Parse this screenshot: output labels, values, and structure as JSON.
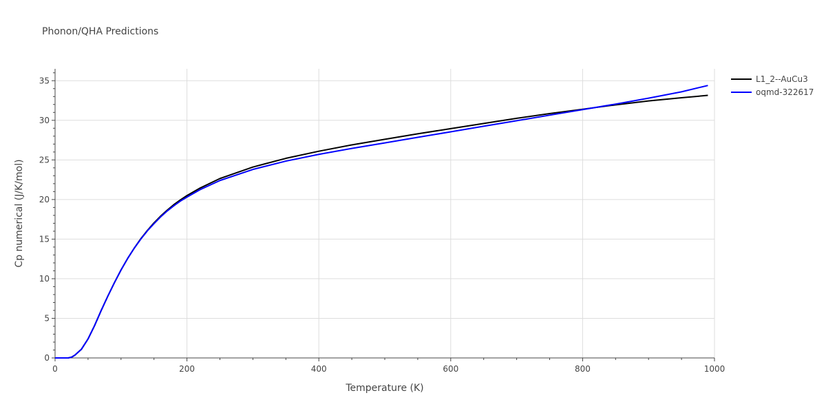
{
  "chart_data": {
    "type": "line",
    "title": "Phonon/QHA Predictions",
    "xlabel": "Temperature (K)",
    "ylabel": "Cp numerical (J/K/mol)",
    "xlim": [
      0,
      1000
    ],
    "ylim": [
      0,
      36.5
    ],
    "x_ticks": [
      0,
      200,
      400,
      600,
      800,
      1000
    ],
    "y_ticks": [
      0,
      5,
      10,
      15,
      20,
      25,
      30,
      35
    ],
    "grid": true,
    "legend_position": "top-right",
    "colors": {
      "text": "#444444",
      "grid": "#dddddd",
      "axis": "#444444"
    },
    "series": [
      {
        "name": "L1_2--AuCu3",
        "color": "#000000",
        "x": [
          0,
          10,
          20,
          25,
          30,
          40,
          50,
          60,
          70,
          80,
          90,
          100,
          110,
          120,
          130,
          140,
          150,
          160,
          170,
          180,
          190,
          200,
          220,
          250,
          300,
          350,
          400,
          450,
          500,
          550,
          600,
          650,
          700,
          750,
          800,
          850,
          900,
          950,
          990
        ],
        "values": [
          0,
          0,
          0,
          0.1,
          0.35,
          1.1,
          2.4,
          4.1,
          6.0,
          7.8,
          9.5,
          11.1,
          12.55,
          13.85,
          15.05,
          16.1,
          17.05,
          17.9,
          18.65,
          19.35,
          19.95,
          20.5,
          21.45,
          22.65,
          24.1,
          25.2,
          26.1,
          26.9,
          27.6,
          28.3,
          28.95,
          29.6,
          30.25,
          30.85,
          31.4,
          31.95,
          32.45,
          32.85,
          33.15
        ]
      },
      {
        "name": "oqmd-322617",
        "color": "#0000ff",
        "x": [
          0,
          10,
          20,
          25,
          30,
          40,
          50,
          60,
          70,
          80,
          90,
          100,
          110,
          120,
          130,
          140,
          150,
          160,
          170,
          180,
          190,
          200,
          220,
          250,
          300,
          350,
          400,
          450,
          500,
          550,
          600,
          650,
          700,
          750,
          800,
          850,
          900,
          950,
          990
        ],
        "values": [
          0,
          0,
          0,
          0.1,
          0.35,
          1.1,
          2.4,
          4.1,
          6.0,
          7.8,
          9.5,
          11.1,
          12.55,
          13.85,
          15.0,
          16.05,
          16.95,
          17.8,
          18.55,
          19.2,
          19.8,
          20.3,
          21.25,
          22.4,
          23.8,
          24.85,
          25.7,
          26.45,
          27.15,
          27.85,
          28.55,
          29.25,
          29.95,
          30.65,
          31.35,
          32.05,
          32.8,
          33.6,
          34.4
        ]
      }
    ]
  }
}
